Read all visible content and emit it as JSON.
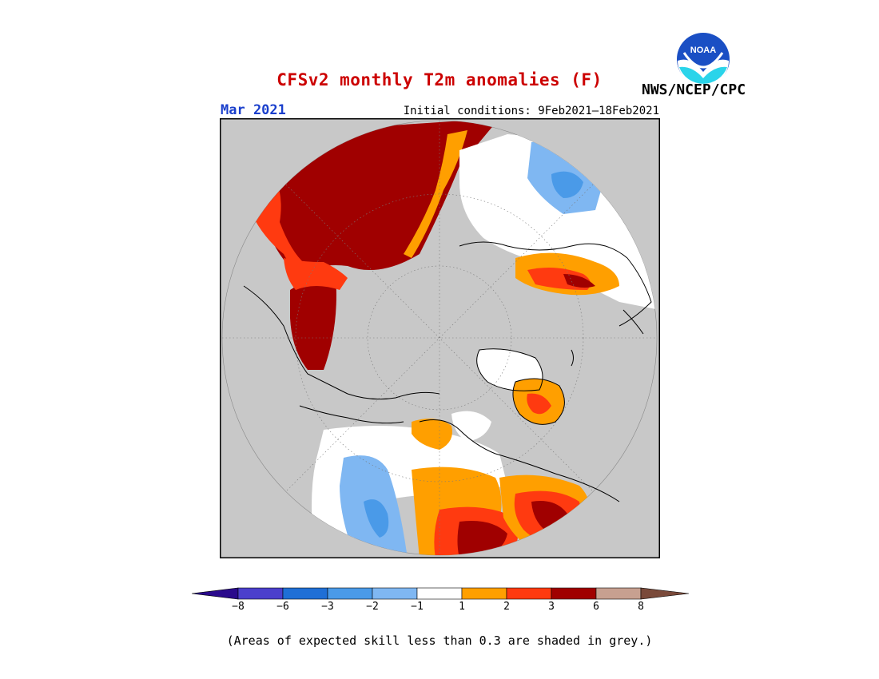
{
  "header": {
    "title": "CFSv2 monthly T2m anomalies (F)",
    "month": "Mar 2021",
    "initial_conditions": "Initial conditions: 9Feb2021–18Feb2021",
    "agency": "NWS/NCEP/CPC",
    "logo_text": "NOAA"
  },
  "colors": {
    "title": "#cc0000",
    "month": "#1a3fcc",
    "grey_mask": "#c8c8c8",
    "ocean": "#c8c8c8",
    "land_white": "#ffffff",
    "coast": "#000000"
  },
  "legend": {
    "ticks": [
      "−8",
      "−6",
      "−3",
      "−2",
      "−1",
      "1",
      "2",
      "3",
      "6",
      "8"
    ],
    "bins": [
      {
        "color": "#2a0a8c"
      },
      {
        "color": "#4b3fcc"
      },
      {
        "color": "#1f6fd6"
      },
      {
        "color": "#4a9ae8"
      },
      {
        "color": "#7fb7f2"
      },
      {
        "color": "#ffffff"
      },
      {
        "color": "#ff9f00"
      },
      {
        "color": "#ff3a10"
      },
      {
        "color": "#a00000"
      },
      {
        "color": "#c7a090"
      },
      {
        "color": "#7a4a3a"
      }
    ]
  },
  "footnote": "(Areas of expected skill less than 0.3 are shaded in grey.)"
}
